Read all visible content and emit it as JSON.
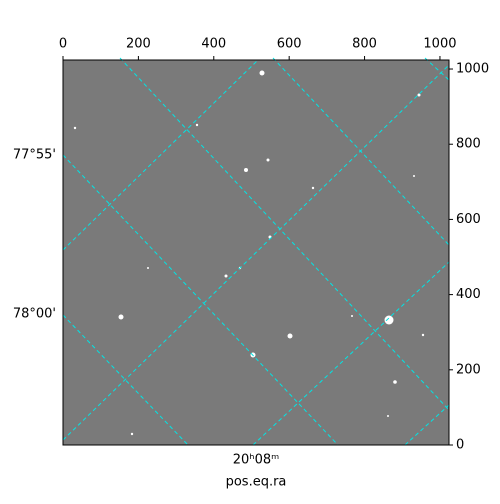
{
  "chart_data": {
    "type": "image",
    "xlabel": "pos.eq.ra",
    "xlim": [
      0,
      1024
    ],
    "ylim": [
      0,
      1024
    ],
    "xticks": [
      0,
      200,
      400,
      600,
      800,
      1000
    ],
    "yticks": [
      0,
      200,
      400,
      600,
      800,
      1000
    ],
    "ra_ticks": [
      "20ʰ08ᵐ"
    ],
    "dec_ticks": [
      "77°55'",
      "78°00'"
    ]
  }
}
